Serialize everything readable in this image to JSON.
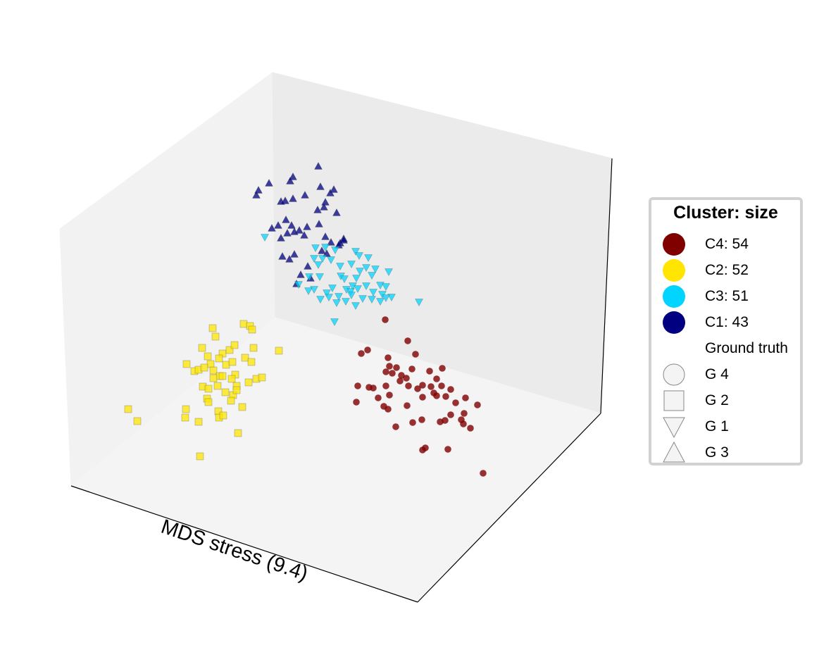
{
  "chart_data": {
    "type": "scatter",
    "projection": "3d",
    "title": "",
    "xlabel": "MDS stress (9.4)",
    "ylabel": "",
    "zlabel": "",
    "grid": false,
    "axis_ticks": false,
    "legend_position": "right",
    "legend": {
      "title": "Cluster: size",
      "clusters": [
        {
          "label": "C4: 54",
          "color": "#800000"
        },
        {
          "label": "C2: 52",
          "color": "#ffe500"
        },
        {
          "label": "C3: 51",
          "color": "#00d4ff"
        },
        {
          "label": "C1: 43",
          "color": "#000080"
        }
      ],
      "shape_header": "Ground truth",
      "shapes": [
        {
          "label": "G 4",
          "marker": "circle"
        },
        {
          "label": "G 2",
          "marker": "square"
        },
        {
          "label": "G 1",
          "marker": "triangle-down"
        },
        {
          "label": "G 3",
          "marker": "triangle-up"
        }
      ]
    },
    "series": [
      {
        "cluster": "C4",
        "group": "G 4",
        "marker": "circle",
        "color": "#800000",
        "points": [
          [
            547,
            454
          ],
          [
            522,
            497
          ],
          [
            513,
            502
          ],
          [
            579,
            484
          ],
          [
            590,
            503
          ],
          [
            551,
            508
          ],
          [
            553,
            520
          ],
          [
            557,
            530
          ],
          [
            548,
            528
          ],
          [
            563,
            522
          ],
          [
            570,
            533
          ],
          [
            568,
            541
          ],
          [
            585,
            524
          ],
          [
            577,
            537
          ],
          [
            610,
            527
          ],
          [
            628,
            523
          ],
          [
            580,
            548
          ],
          [
            600,
            547
          ],
          [
            593,
            552
          ],
          [
            612,
            549
          ],
          [
            620,
            538
          ],
          [
            627,
            548
          ],
          [
            640,
            553
          ],
          [
            508,
            548
          ],
          [
            524,
            550
          ],
          [
            530,
            551
          ],
          [
            548,
            548
          ],
          [
            553,
            561
          ],
          [
            537,
            565
          ],
          [
            506,
            571
          ],
          [
            545,
            577
          ],
          [
            551,
            581
          ],
          [
            578,
            576
          ],
          [
            600,
            564
          ],
          [
            620,
            562
          ],
          [
            633,
            563
          ],
          [
            647,
            572
          ],
          [
            661,
            565
          ],
          [
            678,
            575
          ],
          [
            659,
            587
          ],
          [
            640,
            589
          ],
          [
            632,
            597
          ],
          [
            625,
            599
          ],
          [
            655,
            596
          ],
          [
            658,
            602
          ],
          [
            668,
            608
          ],
          [
            599,
            596
          ],
          [
            586,
            600
          ],
          [
            562,
            606
          ],
          [
            604,
            636
          ],
          [
            600,
            639
          ],
          [
            636,
            638
          ],
          [
            686,
            672
          ],
          [
            616,
            558
          ]
        ]
      },
      {
        "cluster": "C2",
        "group": "G 2",
        "marker": "square",
        "color": "#ffe500",
        "points": [
          [
            346,
            460
          ],
          [
            355,
            463
          ],
          [
            358,
            468
          ],
          [
            302,
            466
          ],
          [
            306,
            478
          ],
          [
            287,
            494
          ],
          [
            295,
            506
          ],
          [
            299,
            517
          ],
          [
            316,
            502
          ],
          [
            326,
            497
          ],
          [
            333,
            490
          ],
          [
            360,
            494
          ],
          [
            396,
            498
          ],
          [
            311,
            509
          ],
          [
            265,
            517
          ],
          [
            276,
            527
          ],
          [
            282,
            525
          ],
          [
            290,
            522
          ],
          [
            303,
            526
          ],
          [
            321,
            518
          ],
          [
            330,
            514
          ],
          [
            348,
            508
          ],
          [
            357,
            514
          ],
          [
            312,
            534
          ],
          [
            303,
            537
          ],
          [
            316,
            534
          ],
          [
            334,
            532
          ],
          [
            329,
            538
          ],
          [
            353,
            543
          ],
          [
            364,
            538
          ],
          [
            372,
            536
          ],
          [
            288,
            549
          ],
          [
            296,
            552
          ],
          [
            309,
            548
          ],
          [
            320,
            557
          ],
          [
            336,
            548
          ],
          [
            331,
            561
          ],
          [
            294,
            566
          ],
          [
            296,
            571
          ],
          [
            310,
            584
          ],
          [
            328,
            569
          ],
          [
            344,
            578
          ],
          [
            264,
            581
          ],
          [
            263,
            593
          ],
          [
            282,
            599
          ],
          [
            311,
            593
          ],
          [
            317,
            590
          ],
          [
            338,
            615
          ],
          [
            182,
            581
          ],
          [
            195,
            598
          ],
          [
            284,
            648
          ],
          [
            336,
            554
          ]
        ]
      },
      {
        "cluster": "C3",
        "group": "G 1",
        "marker": "triangle-down",
        "color": "#00d4ff",
        "points": [
          [
            376,
            337
          ],
          [
            448,
            352
          ],
          [
            462,
            351
          ],
          [
            476,
            355
          ],
          [
            505,
            357
          ],
          [
            510,
            363
          ],
          [
            523,
            366
          ],
          [
            446,
            367
          ],
          [
            458,
            367
          ],
          [
            470,
            369
          ],
          [
            452,
            376
          ],
          [
            483,
            378
          ],
          [
            499,
            375
          ],
          [
            520,
            380
          ],
          [
            533,
            382
          ],
          [
            552,
            386
          ],
          [
            511,
            385
          ],
          [
            439,
            393
          ],
          [
            454,
            393
          ],
          [
            484,
            392
          ],
          [
            489,
            396
          ],
          [
            506,
            395
          ],
          [
            528,
            391
          ],
          [
            424,
            404
          ],
          [
            446,
            411
          ],
          [
            472,
            409
          ],
          [
            492,
            411
          ],
          [
            501,
            406
          ],
          [
            508,
            410
          ],
          [
            520,
            406
          ],
          [
            540,
            405
          ],
          [
            548,
            407
          ],
          [
            438,
            413
          ],
          [
            464,
            416
          ],
          [
            481,
            421
          ],
          [
            498,
            414
          ],
          [
            530,
            415
          ],
          [
            543,
            418
          ],
          [
            556,
            422
          ],
          [
            455,
            425
          ],
          [
            467,
            422
          ],
          [
            478,
            430
          ],
          [
            491,
            428
          ],
          [
            505,
            434
          ],
          [
            515,
            424
          ],
          [
            528,
            425
          ],
          [
            540,
            428
          ],
          [
            548,
            423
          ],
          [
            475,
            457
          ],
          [
            595,
            429
          ],
          [
            499,
            419
          ]
        ]
      },
      {
        "cluster": "C1",
        "group": "G 3",
        "marker": "triangle-up",
        "color": "#000080",
        "points": [
          [
            452,
            236
          ],
          [
            416,
            251
          ],
          [
            412,
            257
          ],
          [
            382,
            260
          ],
          [
            367,
            270
          ],
          [
            364,
            277
          ],
          [
            433,
            277
          ],
          [
            455,
            265
          ],
          [
            474,
            269
          ],
          [
            469,
            274
          ],
          [
            405,
            285
          ],
          [
            399,
            286
          ],
          [
            416,
            282
          ],
          [
            462,
            287
          ],
          [
            460,
            294
          ],
          [
            451,
            298
          ],
          [
            478,
            302
          ],
          [
            406,
            312
          ],
          [
            395,
            320
          ],
          [
            386,
            324
          ],
          [
            414,
            320
          ],
          [
            425,
            327
          ],
          [
            436,
            322
          ],
          [
            453,
            318
          ],
          [
            488,
            339
          ],
          [
            408,
            331
          ],
          [
            418,
            329
          ],
          [
            432,
            334
          ],
          [
            399,
            338
          ],
          [
            462,
            336
          ],
          [
            470,
            344
          ],
          [
            481,
            348
          ],
          [
            488,
            341
          ],
          [
            457,
            356
          ],
          [
            464,
            360
          ],
          [
            418,
            361
          ],
          [
            401,
            364
          ],
          [
            411,
            368
          ],
          [
            427,
            390
          ],
          [
            421,
            403
          ],
          [
            441,
            395
          ],
          [
            437,
            378
          ],
          [
            483,
            345
          ]
        ]
      }
    ]
  }
}
